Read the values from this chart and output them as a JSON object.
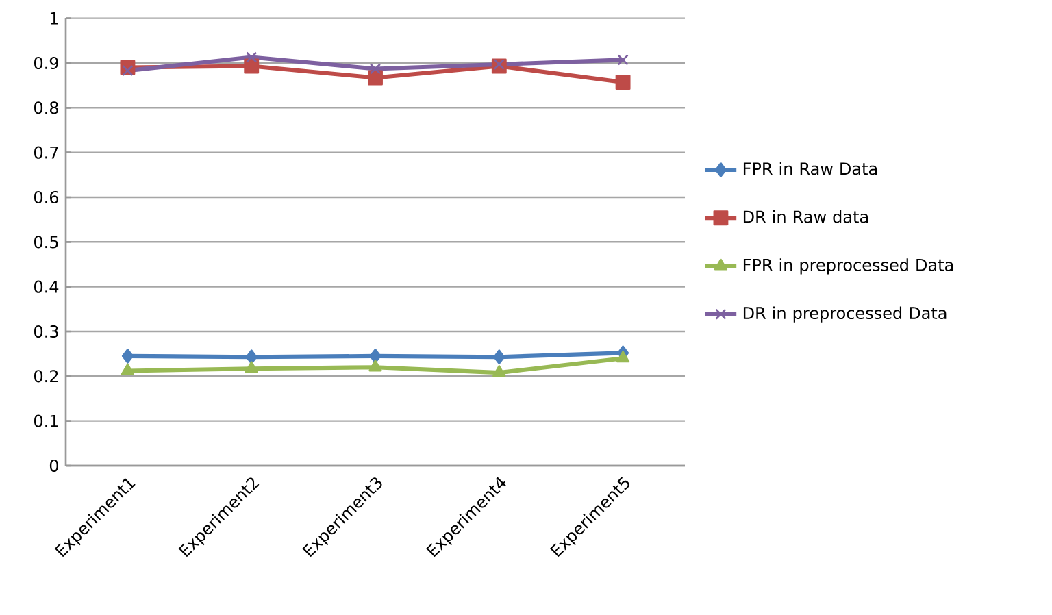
{
  "chart_data": {
    "type": "line",
    "categories": [
      "Experiment1",
      "Experiment2",
      "Experiment3",
      "Experiment4",
      "Experiment5"
    ],
    "series": [
      {
        "name": "FPR in Raw Data",
        "color": "#4a7ebb",
        "marker": "diamond",
        "values": [
          0.245,
          0.243,
          0.245,
          0.243,
          0.252
        ]
      },
      {
        "name": "DR in Raw data",
        "color": "#be4b48",
        "marker": "square",
        "values": [
          0.89,
          0.893,
          0.867,
          0.893,
          0.857
        ]
      },
      {
        "name": "FPR in preprocessed Data",
        "color": "#98b954",
        "marker": "triangle",
        "values": [
          0.212,
          0.217,
          0.22,
          0.208,
          0.24
        ]
      },
      {
        "name": "DR in preprocessed Data",
        "color": "#7d60a0",
        "marker": "cross",
        "values": [
          0.883,
          0.913,
          0.887,
          0.897,
          0.907
        ]
      }
    ],
    "ylim": [
      0,
      1
    ],
    "yticks": [
      0,
      0.1,
      0.2,
      0.3,
      0.4,
      0.5,
      0.6,
      0.7,
      0.8,
      0.9,
      1
    ],
    "grid": "y",
    "legend": "right",
    "line_style": "solid"
  }
}
